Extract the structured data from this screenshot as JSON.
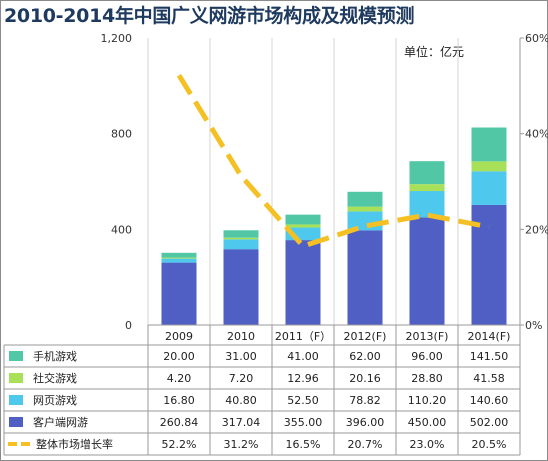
{
  "chart_data": {
    "type": "bar",
    "stacked": true,
    "title": "2010-2014年中国广义网游市场构成及规模预测",
    "unit_label": "单位：亿元",
    "categories": [
      "2009",
      "2010",
      "2011（F）",
      "2012(F)",
      "2013(F)",
      "2014(F)"
    ],
    "y_left": {
      "min": 0,
      "max": 1200,
      "ticks": [
        "0",
        "400",
        "800",
        "1,200"
      ]
    },
    "y_right": {
      "min": 0,
      "max": 60,
      "ticks": [
        "0%",
        "20%",
        "40%",
        "60%"
      ]
    },
    "grid": "vertical",
    "series": [
      {
        "name": "客户端网游",
        "color": "#4f5fc4",
        "values": [
          260.84,
          317.04,
          355.0,
          396.0,
          450.0,
          502.0
        ],
        "labels": [
          "260.84",
          "317.04",
          "355.00",
          "396.00",
          "450.00",
          "502.00"
        ]
      },
      {
        "name": "网页游戏",
        "color": "#4fc8ee",
        "values": [
          16.8,
          40.8,
          52.5,
          78.82,
          110.2,
          140.6
        ],
        "labels": [
          "16.80",
          "40.80",
          "52.50",
          "78.82",
          "110.20",
          "140.60"
        ]
      },
      {
        "name": "社交游戏",
        "color": "#a8e05a",
        "values": [
          4.2,
          7.2,
          12.96,
          20.16,
          28.8,
          41.58
        ],
        "labels": [
          "4.20",
          "7.20",
          "12.96",
          "20.16",
          "28.80",
          "41.58"
        ]
      },
      {
        "name": "手机游戏",
        "color": "#52c7a6",
        "values": [
          20.0,
          31.0,
          41.0,
          62.0,
          96.0,
          141.5
        ],
        "labels": [
          "20.00",
          "31.00",
          "41.00",
          "62.00",
          "96.00",
          "141.50"
        ]
      }
    ],
    "line_series": {
      "name": "整体市场增长率",
      "color": "#f5c024",
      "axis": "right",
      "values": [
        52.2,
        31.2,
        16.5,
        20.7,
        23.0,
        20.5
      ],
      "labels": [
        "52.2%",
        "31.2%",
        "16.5%",
        "20.7%",
        "23.0%",
        "20.5%"
      ]
    },
    "table_rows": [
      "手机游戏",
      "社交游戏",
      "网页游戏",
      "客户端网游",
      "整体市场增长率"
    ]
  }
}
